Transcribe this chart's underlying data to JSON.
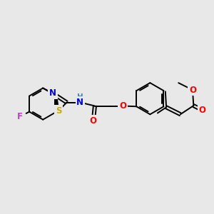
{
  "background_color": "#e8e8e8",
  "bond_color": "#000000",
  "atom_colors": {
    "N": "#0000cc",
    "O": "#ff0000",
    "S": "#ccaa00",
    "F": "#bb44bb",
    "H": "#4488aa",
    "C": "#000000"
  },
  "figsize": [
    3.0,
    3.0
  ],
  "dpi": 100,
  "lw": 1.4,
  "fs": 8.5,
  "fs_small": 7.5
}
